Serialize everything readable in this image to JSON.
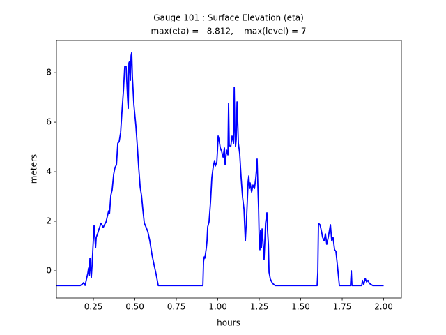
{
  "chart_data": {
    "type": "line",
    "title": [
      "Gauge 101 : Surface Elevation (eta)",
      "max(eta) =   8.812,    max(level) = 7"
    ],
    "xlabel": "hours",
    "ylabel": "meters",
    "xlim": [
      0.027,
      2.107
    ],
    "ylim": [
      -1.1,
      9.3
    ],
    "xticks": [
      0.25,
      {
        "value": 0.5,
        "label": "0.50"
      },
      0.75,
      {
        "value": 1.0,
        "label": "1.00"
      },
      1.25,
      {
        "value": 1.5,
        "label": "1.50"
      },
      1.75,
      {
        "value": 2.0,
        "label": "2.00"
      }
    ],
    "yticks": [
      0,
      2,
      4,
      6,
      8
    ],
    "x": [
      0.027,
      0.17,
      0.183,
      0.191,
      0.2,
      0.208,
      0.216,
      0.221,
      0.225,
      0.229,
      0.233,
      0.237,
      0.242,
      0.246,
      0.254,
      0.263,
      0.267,
      0.275,
      0.284,
      0.296,
      0.309,
      0.317,
      0.326,
      0.334,
      0.342,
      0.347,
      0.355,
      0.363,
      0.372,
      0.38,
      0.389,
      0.397,
      0.405,
      0.414,
      0.422,
      0.431,
      0.439,
      0.447,
      0.456,
      0.46,
      0.464,
      0.468,
      0.473,
      0.477,
      0.481,
      0.485,
      0.494,
      0.506,
      0.515,
      0.523,
      0.532,
      0.54,
      0.548,
      0.557,
      0.565,
      0.578,
      0.59,
      0.603,
      0.616,
      0.628,
      0.641,
      0.91,
      0.914,
      0.918,
      0.922,
      0.931,
      0.935,
      0.939,
      0.947,
      0.956,
      0.964,
      0.973,
      0.981,
      0.985,
      0.994,
      0.998,
      1.002,
      1.006,
      1.015,
      1.023,
      1.032,
      1.04,
      1.044,
      1.053,
      1.061,
      1.065,
      1.069,
      1.078,
      1.086,
      1.095,
      1.099,
      1.103,
      1.107,
      1.111,
      1.116,
      1.12,
      1.124,
      1.132,
      1.141,
      1.149,
      1.158,
      1.166,
      1.174,
      1.183,
      1.187,
      1.191,
      1.195,
      1.204,
      1.212,
      1.221,
      1.229,
      1.233,
      1.237,
      1.242,
      1.246,
      1.25,
      1.254,
      1.258,
      1.263,
      1.267,
      1.271,
      1.279,
      1.288,
      1.296,
      1.3,
      1.305,
      1.309,
      1.317,
      1.33,
      1.347,
      1.599,
      1.603,
      1.607,
      1.616,
      1.624,
      1.632,
      1.641,
      1.649,
      1.657,
      1.666,
      1.679,
      1.687,
      1.695,
      1.704,
      1.712,
      1.721,
      1.733,
      1.8,
      1.805,
      1.809,
      1.868,
      1.872,
      1.88,
      1.889,
      1.897,
      1.906,
      1.914,
      1.935,
      2.0
    ],
    "series": [
      {
        "color": "#0000ff",
        "values": [
          -0.6,
          -0.6,
          -0.54,
          -0.48,
          -0.59,
          -0.34,
          -0.11,
          0.11,
          -0.2,
          0.51,
          0.08,
          -0.28,
          0.23,
          0.79,
          1.83,
          0.93,
          1.35,
          1.49,
          1.69,
          1.92,
          1.75,
          1.86,
          1.97,
          2.2,
          2.42,
          2.31,
          3.04,
          3.27,
          3.89,
          4.17,
          4.28,
          5.15,
          5.21,
          5.58,
          6.42,
          7.27,
          8.25,
          8.25,
          6.99,
          6.56,
          8.39,
          8.45,
          7.69,
          8.68,
          8.812,
          7.83,
          6.7,
          5.86,
          5.01,
          4.17,
          3.38,
          3.04,
          2.48,
          1.92,
          1.8,
          1.58,
          1.21,
          0.65,
          0.23,
          -0.14,
          -0.6,
          -0.6,
          0.37,
          0.56,
          0.51,
          0.93,
          1.21,
          1.77,
          1.97,
          2.76,
          3.75,
          4.23,
          4.45,
          4.23,
          4.39,
          4.85,
          5.44,
          5.35,
          4.96,
          4.82,
          4.59,
          4.96,
          4.28,
          4.87,
          4.68,
          6.76,
          5.07,
          5.01,
          5.44,
          5.15,
          7.41,
          5.72,
          5.01,
          5.3,
          6.82,
          6.03,
          5.15,
          4.73,
          3.72,
          2.99,
          2.48,
          1.21,
          2.2,
          3.61,
          3.83,
          3.32,
          3.55,
          3.18,
          3.46,
          3.32,
          3.75,
          4.08,
          4.51,
          3.32,
          2.48,
          1.21,
          0.85,
          1.63,
          0.93,
          1.69,
          1.35,
          0.45,
          1.92,
          2.34,
          1.63,
          1.07,
          -0.06,
          -0.34,
          -0.51,
          -0.6,
          -0.6,
          -0.06,
          1.92,
          1.86,
          1.63,
          1.35,
          1.21,
          1.49,
          1.07,
          1.35,
          1.86,
          1.21,
          1.35,
          0.85,
          0.79,
          0.23,
          -0.6,
          -0.6,
          0.0,
          -0.6,
          -0.6,
          -0.39,
          -0.56,
          -0.31,
          -0.45,
          -0.39,
          -0.51,
          -0.6,
          -0.6
        ]
      }
    ]
  }
}
